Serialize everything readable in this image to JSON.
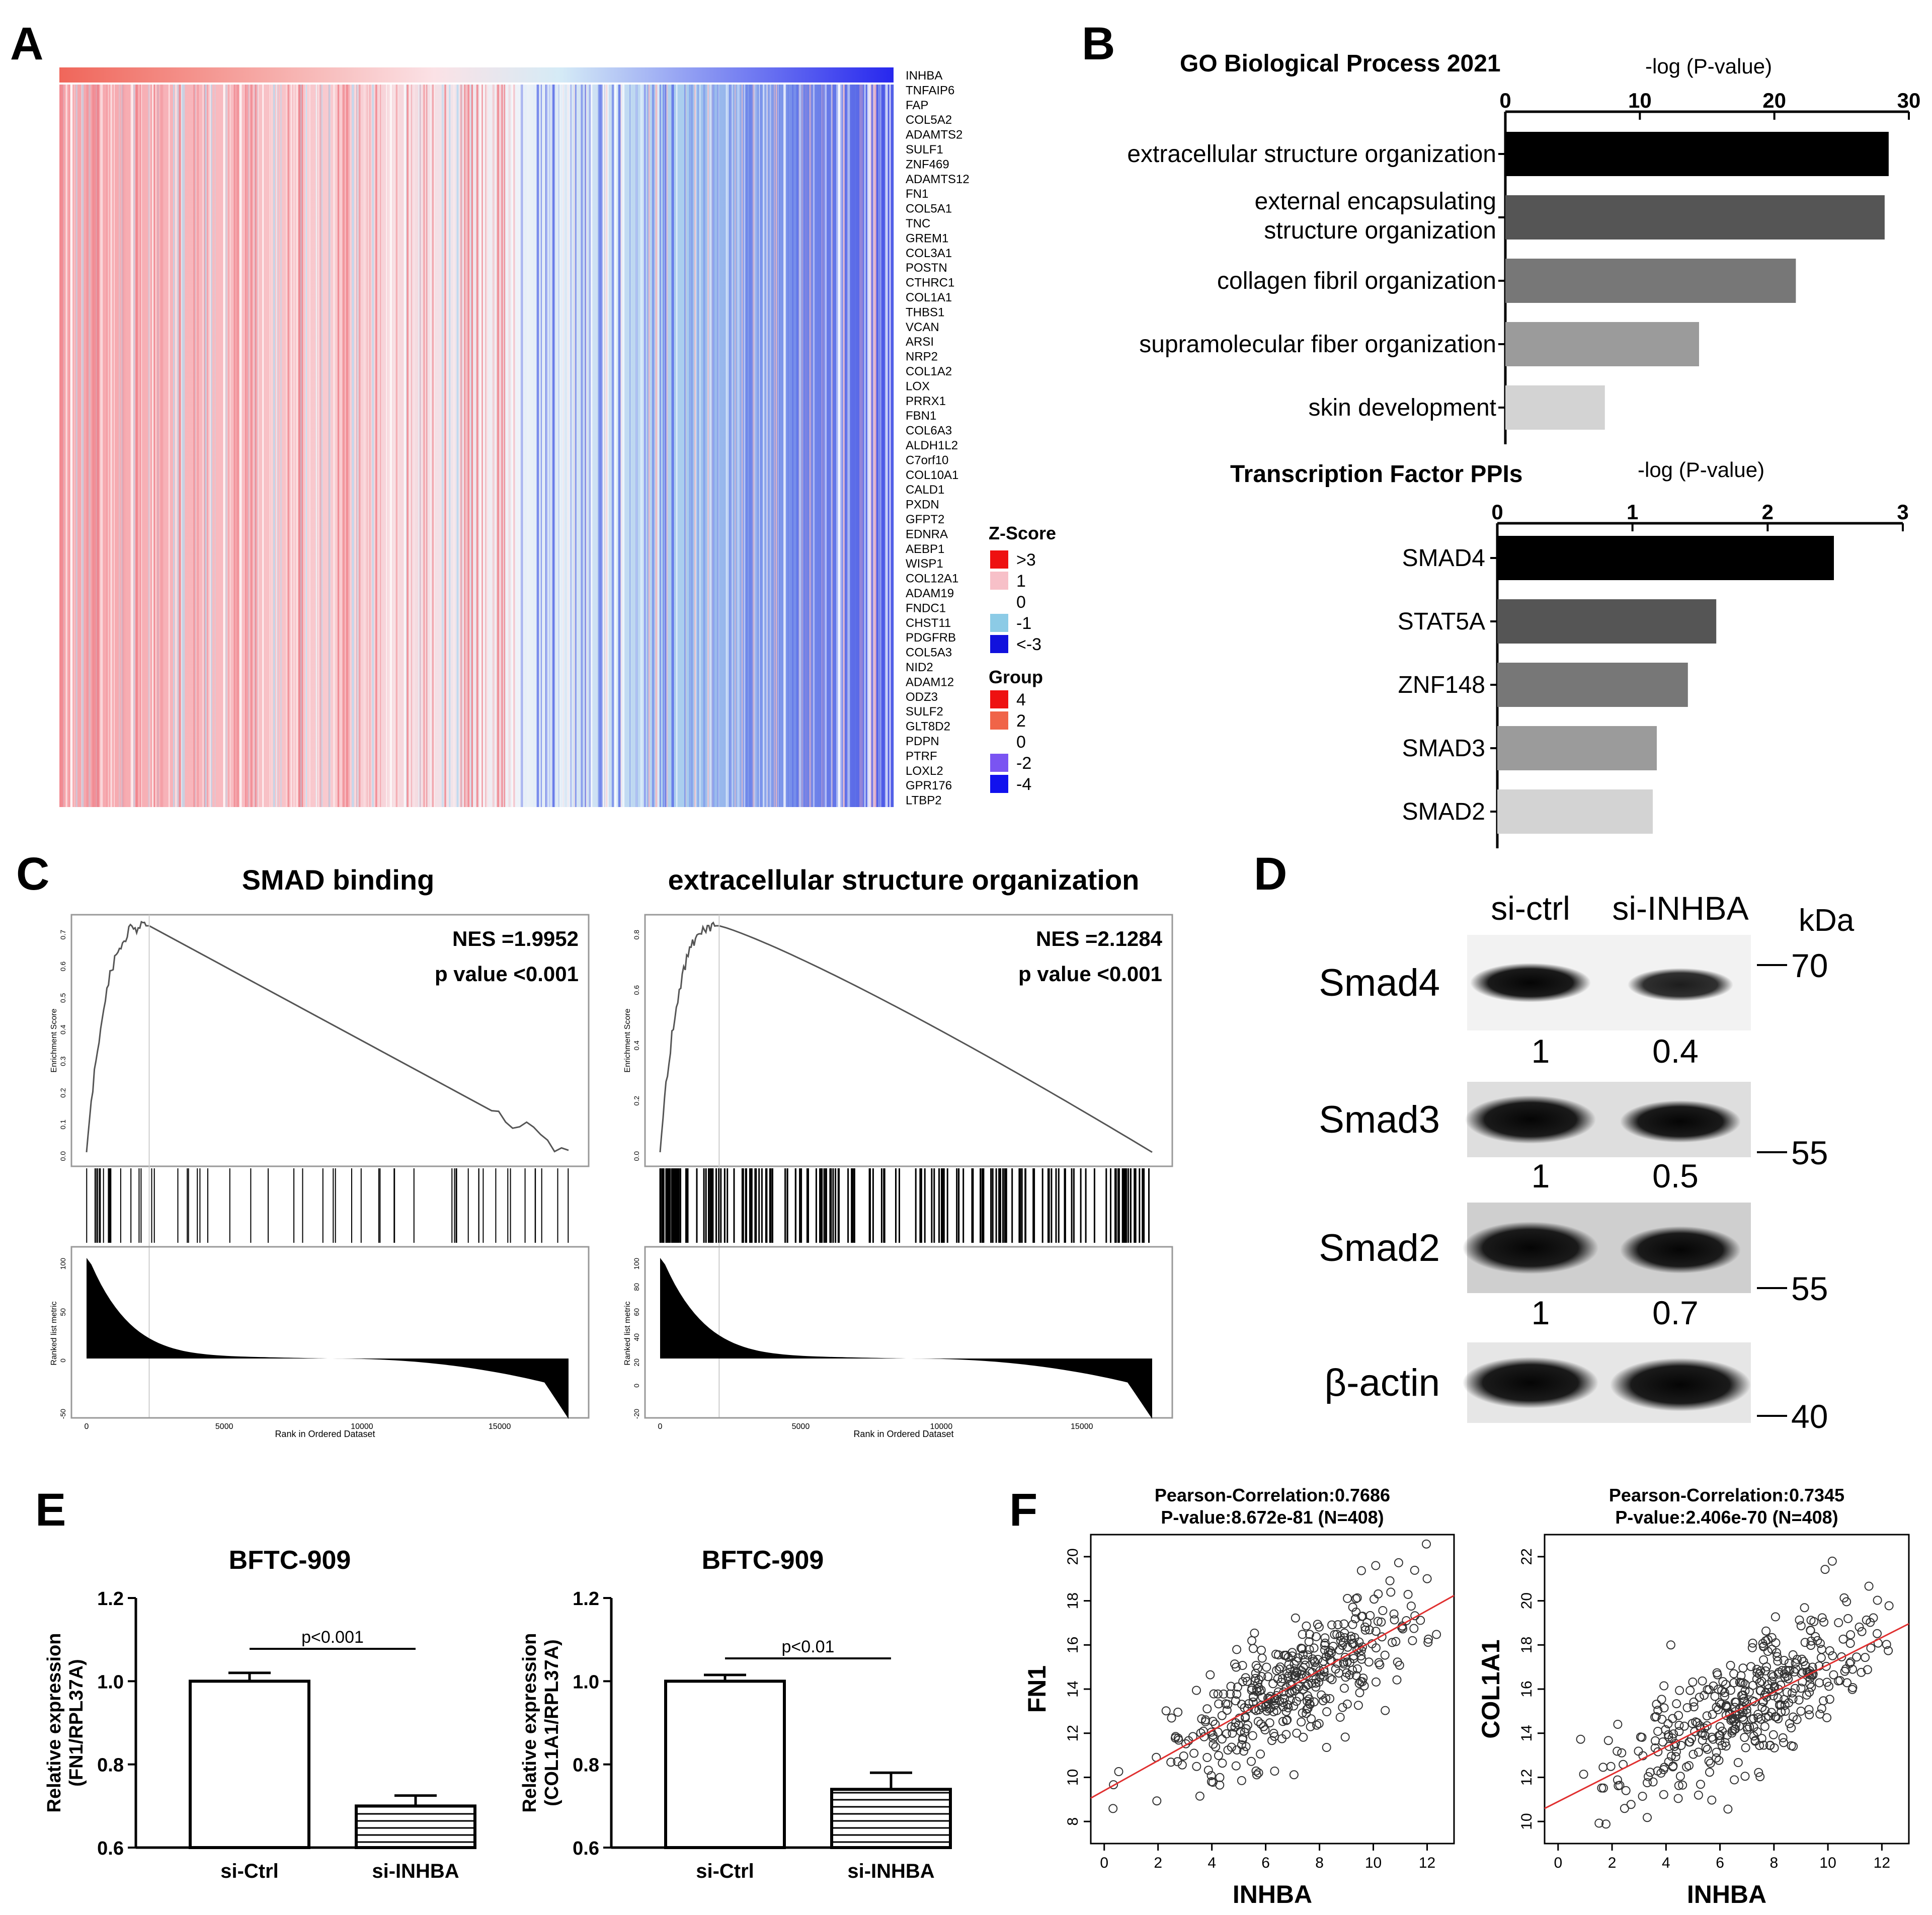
{
  "panel_labels": {
    "a": "A",
    "b": "B",
    "c": "C",
    "d": "D",
    "e": "E",
    "f": "F"
  },
  "panel_a": {
    "genes": [
      "INHBA",
      "TNFAIP6",
      "FAP",
      "COL5A2",
      "ADAMTS2",
      "SULF1",
      "ZNF469",
      "ADAMTS12",
      "FN1",
      "COL5A1",
      "TNC",
      "GREM1",
      "COL3A1",
      "POSTN",
      "CTHRC1",
      "COL1A1",
      "THBS1",
      "VCAN",
      "ARSI",
      "NRP2",
      "COL1A2",
      "LOX",
      "PRRX1",
      "FBN1",
      "COL6A3",
      "ALDH1L2",
      "C7orf10",
      "COL10A1",
      "CALD1",
      "PXDN",
      "GFPT2",
      "EDNRA",
      "AEBP1",
      "WISP1",
      "COL12A1",
      "ADAM19",
      "FNDC1",
      "CHST11",
      "PDGFRB",
      "COL5A3",
      "NID2",
      "ADAM12",
      "ODZ3",
      "SULF2",
      "GLT8D2",
      "PDPN",
      "PTRF",
      "LOXL2",
      "GPR176",
      "LTBP2"
    ],
    "legend_z_title": "Z-Score",
    "legend_z": [
      {
        "label": ">3",
        "color": "#ee1111"
      },
      {
        "label": "1",
        "color": "#f7c0c8"
      },
      {
        "label": "0",
        "color": null
      },
      {
        "label": "-1",
        "color": "#8ccbe6"
      },
      {
        "label": "<-3",
        "color": "#1111dd"
      }
    ],
    "legend_group_title": "Group",
    "legend_group": [
      {
        "label": "4",
        "color": "#ee1111"
      },
      {
        "label": "2",
        "color": "#f06448"
      },
      {
        "label": "0",
        "color": null
      },
      {
        "label": "-2",
        "color": "#7a54f2"
      },
      {
        "label": "-4",
        "color": "#1111ee"
      }
    ]
  },
  "panel_b": {
    "go": {
      "title": "GO Biological Process 2021",
      "axis_title": "-log (P-value)",
      "ticks": [
        "0",
        "10",
        "20",
        "30"
      ],
      "max": 30,
      "bars": [
        {
          "label1": "extracellular structure organization",
          "label2": "",
          "value": 28.5,
          "color": "#000000"
        },
        {
          "label1": "external encapsulating",
          "label2": "structure organization",
          "value": 28.2,
          "color": "#555555"
        },
        {
          "label1": "collagen fibril organization",
          "label2": "",
          "value": 21.6,
          "color": "#777777"
        },
        {
          "label1": "supramolecular fiber organization",
          "label2": "",
          "value": 14.4,
          "color": "#9b9b9b"
        },
        {
          "label1": "skin development",
          "label2": "",
          "value": 7.4,
          "color": "#d3d3d3"
        }
      ]
    },
    "tf": {
      "title": "Transcription Factor PPIs",
      "axis_title": "-log (P-value)",
      "ticks": [
        "0",
        "1",
        "2",
        "3"
      ],
      "max": 3,
      "bars": [
        {
          "label": "SMAD4",
          "value": 2.49,
          "color": "#000000"
        },
        {
          "label": "STAT5A",
          "value": 1.62,
          "color": "#555555"
        },
        {
          "label": "ZNF148",
          "value": 1.41,
          "color": "#777777"
        },
        {
          "label": "SMAD3",
          "value": 1.18,
          "color": "#9b9b9b"
        },
        {
          "label": "SMAD2",
          "value": 1.15,
          "color": "#d3d3d3"
        }
      ]
    }
  },
  "panel_c": {
    "plots": [
      {
        "title": "SMAD binding",
        "nes": "NES =1.9952",
        "pval": "p value <0.001",
        "es_ticks": [
          "0.0",
          "0.1",
          "0.2",
          "0.3",
          "0.4",
          "0.5",
          "0.6",
          "0.7"
        ],
        "es_label": "Enrichment Score",
        "metric_ticks": [
          "100",
          "50",
          "0",
          "-50"
        ],
        "metric_label": "Ranked list metric",
        "x_ticks": [
          "0",
          "5000",
          "10000",
          "15000"
        ],
        "x_label": "Rank in Ordered Dataset"
      },
      {
        "title": "extracellular structure organization",
        "nes": "NES =2.1284",
        "pval": "p value <0.001",
        "es_ticks": [
          "0.0",
          "0.2",
          "0.4",
          "0.6",
          "0.8"
        ],
        "es_label": "Enrichment Score",
        "metric_ticks": [
          "100",
          "80",
          "60",
          "40",
          "20",
          "0",
          "-20"
        ],
        "metric_label": "Ranked list metric",
        "x_ticks": [
          "0",
          "5000",
          "10000",
          "15000"
        ],
        "x_label": "Rank in Ordered Dataset"
      }
    ]
  },
  "panel_d": {
    "col_labels": [
      "si-ctrl",
      "si-INHBA"
    ],
    "kda_label": "kDa",
    "rows": [
      {
        "protein": "Smad4",
        "values": [
          "1",
          "0.4"
        ],
        "marker": "70"
      },
      {
        "protein": "Smad3",
        "values": [
          "1",
          "0.5"
        ],
        "marker": "55"
      },
      {
        "protein": "Smad2",
        "values": [
          "1",
          "0.7"
        ],
        "marker": "55"
      },
      {
        "protein": "β-actin",
        "values": [],
        "marker": "40"
      }
    ]
  },
  "panel_e": {
    "charts": [
      {
        "title": "BFTC-909",
        "ylabel1": "Relative expression",
        "ylabel2": "(FN1/RPL37A)",
        "categories": [
          "si-Ctrl",
          "si-INHBA"
        ],
        "values": [
          1.0,
          0.7
        ],
        "errors": [
          0.02,
          0.025
        ],
        "y_ticks": [
          "0.6",
          "0.8",
          "1.0",
          "1.2"
        ],
        "ylim": [
          0.6,
          1.2
        ],
        "pvalue": "p<0.001"
      },
      {
        "title": "BFTC-909",
        "ylabel1": "Relative expression",
        "ylabel2": "(COL1A1/RPL37A)",
        "categories": [
          "si-Ctrl",
          "si-INHBA"
        ],
        "values": [
          1.0,
          0.74
        ],
        "errors": [
          0.015,
          0.04
        ],
        "y_ticks": [
          "0.6",
          "0.8",
          "1.0",
          "1.2"
        ],
        "ylim": [
          0.6,
          1.2
        ],
        "pvalue": "p<0.01"
      }
    ]
  },
  "chart_data": [
    {
      "type": "bar",
      "title": "GO Biological Process 2021",
      "xlabel": "-log (P-value)",
      "categories": [
        "extracellular structure organization",
        "external encapsulating structure organization",
        "collagen fibril organization",
        "supramolecular fiber organization",
        "skin development"
      ],
      "values": [
        28.5,
        28.2,
        21.6,
        14.4,
        7.4
      ],
      "xlim": [
        0,
        30
      ]
    },
    {
      "type": "bar",
      "title": "Transcription Factor PPIs",
      "xlabel": "-log (P-value)",
      "categories": [
        "SMAD4",
        "STAT5A",
        "ZNF148",
        "SMAD3",
        "SMAD2"
      ],
      "values": [
        2.49,
        1.62,
        1.41,
        1.18,
        1.15
      ],
      "xlim": [
        0,
        3
      ]
    },
    {
      "type": "bar",
      "title": "BFTC-909",
      "ylabel": "Relative expression (FN1/RPL37A)",
      "categories": [
        "si-Ctrl",
        "si-INHBA"
      ],
      "values": [
        1.0,
        0.7
      ],
      "ylim": [
        0.6,
        1.2
      ]
    },
    {
      "type": "bar",
      "title": "BFTC-909",
      "ylabel": "Relative expression (COL1A1/RPL37A)",
      "categories": [
        "si-Ctrl",
        "si-INHBA"
      ],
      "values": [
        1.0,
        0.74
      ],
      "ylim": [
        0.6,
        1.2
      ]
    },
    {
      "type": "scatter",
      "title1": "Pearson-Correlation:0.7686",
      "title2": "P-value:8.672e-81 (N=408)",
      "xlabel": "INHBA",
      "ylabel": "FN1",
      "xlim": [
        -0.5,
        13
      ],
      "ylim": [
        7,
        21
      ],
      "x_ticks": [
        0,
        2,
        4,
        6,
        8,
        10,
        12
      ],
      "y_ticks": [
        8,
        10,
        12,
        14,
        16,
        18,
        20
      ],
      "fit": {
        "slope": 0.68,
        "intercept": 9.4
      },
      "n": 408,
      "center": [
        6.5,
        13.8
      ],
      "noise": 1.4
    },
    {
      "type": "scatter",
      "title1": "Pearson-Correlation:0.7345",
      "title2": "P-value:2.406e-70 (N=408)",
      "xlabel": "INHBA",
      "ylabel": "COL1A1",
      "xlim": [
        -0.5,
        13
      ],
      "ylim": [
        9,
        23
      ],
      "x_ticks": [
        0,
        2,
        4,
        6,
        8,
        10,
        12
      ],
      "y_ticks": [
        10,
        12,
        14,
        16,
        18,
        20,
        22
      ],
      "fit": {
        "slope": 0.62,
        "intercept": 10.9
      },
      "n": 408,
      "center": [
        6.5,
        14.9
      ],
      "noise": 1.35
    }
  ]
}
